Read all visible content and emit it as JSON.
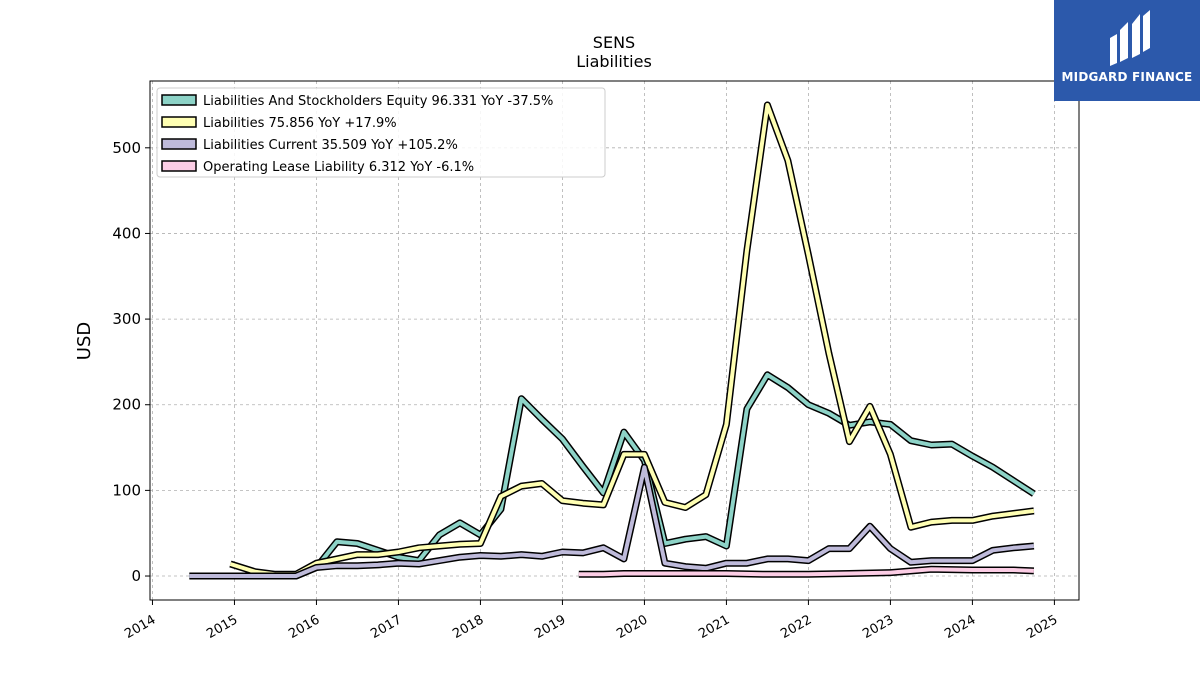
{
  "chart_data": {
    "type": "line",
    "title": "SENS",
    "subtitle": "Liabilities",
    "ylabel": "USD",
    "xlabel": "",
    "xlim": [
      2013.97,
      2025.3
    ],
    "ylim": [
      -28,
      578
    ],
    "yticks": [
      0,
      100,
      200,
      300,
      400,
      500
    ],
    "xticks": [
      2014,
      2015,
      2016,
      2017,
      2018,
      2019,
      2020,
      2021,
      2022,
      2023,
      2024,
      2025
    ],
    "grid": true,
    "legend_position": "top-left",
    "series": [
      {
        "name": "Liabilities And Stockholders Equity  96.331 YoY -37.5%",
        "color": "#8dd3c7",
        "points": [
          [
            2014.45,
            0
          ],
          [
            2015.75,
            0
          ],
          [
            2016.0,
            10
          ],
          [
            2016.25,
            40
          ],
          [
            2016.5,
            38
          ],
          [
            2016.75,
            30
          ],
          [
            2017.0,
            22
          ],
          [
            2017.25,
            18
          ],
          [
            2017.5,
            48
          ],
          [
            2017.75,
            62
          ],
          [
            2018.0,
            48
          ],
          [
            2018.25,
            78
          ],
          [
            2018.5,
            207
          ],
          [
            2018.75,
            183
          ],
          [
            2019.0,
            160
          ],
          [
            2019.25,
            128
          ],
          [
            2019.5,
            97
          ],
          [
            2019.75,
            168
          ],
          [
            2020.0,
            135
          ],
          [
            2020.25,
            38
          ],
          [
            2020.5,
            43
          ],
          [
            2020.75,
            46
          ],
          [
            2021.0,
            35
          ],
          [
            2021.25,
            195
          ],
          [
            2021.5,
            235
          ],
          [
            2021.75,
            220
          ],
          [
            2022.0,
            200
          ],
          [
            2022.25,
            190
          ],
          [
            2022.5,
            176
          ],
          [
            2022.75,
            180
          ],
          [
            2023.0,
            177
          ],
          [
            2023.25,
            158
          ],
          [
            2023.5,
            153
          ],
          [
            2023.75,
            154
          ],
          [
            2024.0,
            140
          ],
          [
            2024.25,
            127
          ],
          [
            2024.75,
            96
          ]
        ]
      },
      {
        "name": "Liabilities  75.856 YoY +17.9%",
        "color": "#ffffb3",
        "points": [
          [
            2014.95,
            14
          ],
          [
            2015.25,
            5
          ],
          [
            2015.5,
            2
          ],
          [
            2015.75,
            2
          ],
          [
            2016.0,
            15
          ],
          [
            2016.25,
            20
          ],
          [
            2016.5,
            25
          ],
          [
            2016.75,
            25
          ],
          [
            2017.0,
            28
          ],
          [
            2017.25,
            33
          ],
          [
            2017.5,
            35
          ],
          [
            2017.75,
            37
          ],
          [
            2018.0,
            38
          ],
          [
            2018.25,
            93
          ],
          [
            2018.5,
            105
          ],
          [
            2018.75,
            108
          ],
          [
            2019.0,
            88
          ],
          [
            2019.25,
            85
          ],
          [
            2019.5,
            83
          ],
          [
            2019.75,
            142
          ],
          [
            2020.0,
            142
          ],
          [
            2020.25,
            86
          ],
          [
            2020.5,
            80
          ],
          [
            2020.75,
            95
          ],
          [
            2021.0,
            177
          ],
          [
            2021.25,
            380
          ],
          [
            2021.5,
            550
          ],
          [
            2021.75,
            485
          ],
          [
            2022.0,
            375
          ],
          [
            2022.25,
            260
          ],
          [
            2022.5,
            157
          ],
          [
            2022.75,
            198
          ],
          [
            2023.0,
            142
          ],
          [
            2023.25,
            57
          ],
          [
            2023.5,
            63
          ],
          [
            2023.75,
            65
          ],
          [
            2024.0,
            65
          ],
          [
            2024.25,
            70
          ],
          [
            2024.5,
            73
          ],
          [
            2024.75,
            76
          ]
        ]
      },
      {
        "name": "Liabilities Current  35.509 YoY +105.2%",
        "color": "#bebada",
        "points": [
          [
            2014.45,
            0
          ],
          [
            2015.75,
            0
          ],
          [
            2016.0,
            10
          ],
          [
            2016.25,
            12
          ],
          [
            2016.5,
            12
          ],
          [
            2016.75,
            13
          ],
          [
            2017.0,
            15
          ],
          [
            2017.25,
            14
          ],
          [
            2017.5,
            18
          ],
          [
            2017.75,
            22
          ],
          [
            2018.0,
            24
          ],
          [
            2018.25,
            23
          ],
          [
            2018.5,
            25
          ],
          [
            2018.75,
            23
          ],
          [
            2019.0,
            28
          ],
          [
            2019.25,
            27
          ],
          [
            2019.5,
            33
          ],
          [
            2019.75,
            20
          ],
          [
            2020.0,
            127
          ],
          [
            2020.25,
            15
          ],
          [
            2020.5,
            11
          ],
          [
            2020.75,
            9
          ],
          [
            2021.0,
            15
          ],
          [
            2021.25,
            15
          ],
          [
            2021.5,
            20
          ],
          [
            2021.75,
            20
          ],
          [
            2022.0,
            18
          ],
          [
            2022.25,
            32
          ],
          [
            2022.5,
            32
          ],
          [
            2022.75,
            58
          ],
          [
            2023.0,
            32
          ],
          [
            2023.25,
            16
          ],
          [
            2023.5,
            18
          ],
          [
            2023.75,
            18
          ],
          [
            2024.0,
            18
          ],
          [
            2024.25,
            30
          ],
          [
            2024.5,
            33
          ],
          [
            2024.75,
            35
          ]
        ]
      },
      {
        "name": "Operating Lease Liability  6.312 YoY -6.1%",
        "color": "#fccde5",
        "points": [
          [
            2019.2,
            2
          ],
          [
            2019.5,
            2
          ],
          [
            2019.75,
            3
          ],
          [
            2020.0,
            3
          ],
          [
            2020.5,
            3
          ],
          [
            2021.0,
            3
          ],
          [
            2021.5,
            2
          ],
          [
            2022.0,
            2
          ],
          [
            2022.5,
            3
          ],
          [
            2023.0,
            4
          ],
          [
            2023.5,
            8
          ],
          [
            2024.0,
            7
          ],
          [
            2024.5,
            7
          ],
          [
            2024.75,
            6
          ]
        ]
      }
    ]
  },
  "logo": {
    "text": "MIDGARD FINANCE",
    "background": "#2c59ab"
  }
}
